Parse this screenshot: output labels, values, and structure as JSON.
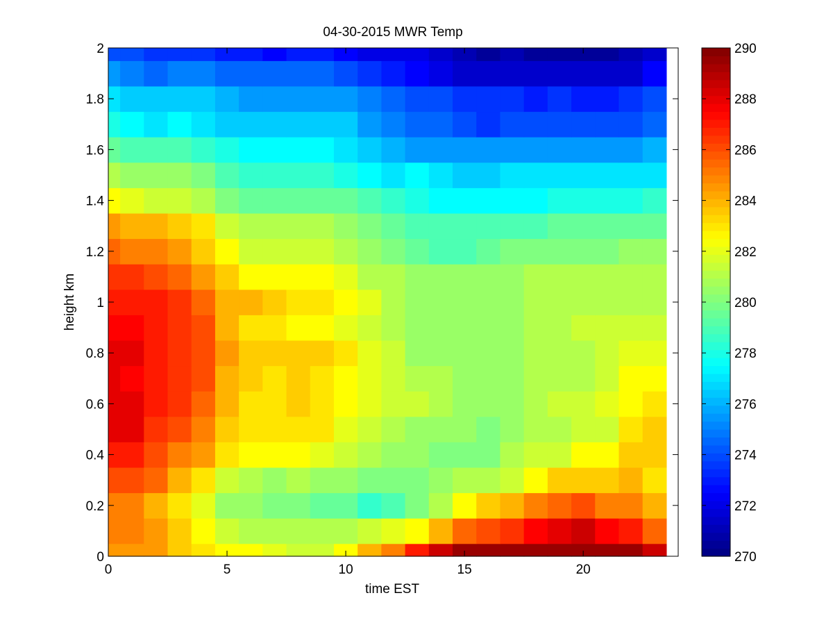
{
  "chart_data": {
    "type": "heatmap",
    "title": "04-30-2015 MWR Temp",
    "xlabel": "time EST",
    "ylabel": "height km",
    "xlim": [
      0,
      24
    ],
    "ylim": [
      0,
      2
    ],
    "x_ticks": [
      0,
      5,
      10,
      15,
      20
    ],
    "y_ticks": [
      0,
      0.2,
      0.4,
      0.6,
      0.8,
      1,
      1.2,
      1.4,
      1.6,
      1.8,
      2
    ],
    "colorbar": {
      "min": 270,
      "max": 290,
      "ticks": [
        270,
        272,
        274,
        276,
        278,
        280,
        282,
        284,
        286,
        288,
        290
      ],
      "colormap": "jet"
    },
    "x": [
      0,
      1,
      2,
      3,
      4,
      5,
      6,
      7,
      8,
      9,
      10,
      11,
      12,
      13,
      14,
      15,
      16,
      17,
      18,
      19,
      20,
      21,
      22,
      23
    ],
    "heights": [
      0.0,
      0.05,
      0.15,
      0.25,
      0.35,
      0.45,
      0.55,
      0.65,
      0.75,
      0.85,
      0.95,
      1.05,
      1.15,
      1.25,
      1.35,
      1.45,
      1.55,
      1.65,
      1.75,
      1.85,
      1.95
    ],
    "values": [
      [
        284.5,
        284.5,
        284.5,
        283.5,
        283.0,
        282.5,
        282.5,
        282.0,
        281.5,
        281.5,
        282.5,
        284.0,
        285.0,
        287.0,
        288.5,
        289.5,
        289.5,
        289.5,
        289.5,
        289.5,
        289.5,
        289.5,
        289.5,
        288.5
      ],
      [
        285.0,
        285.0,
        284.5,
        283.5,
        282.5,
        281.5,
        281.0,
        281.0,
        281.0,
        281.0,
        281.0,
        281.5,
        282.0,
        282.5,
        284.0,
        285.5,
        286.0,
        286.5,
        287.5,
        288.0,
        288.5,
        287.5,
        287.0,
        285.5
      ],
      [
        285.0,
        285.0,
        284.0,
        283.0,
        282.0,
        280.5,
        280.5,
        280.0,
        280.0,
        279.5,
        279.5,
        278.5,
        279.0,
        280.0,
        281.0,
        282.5,
        283.5,
        284.0,
        285.0,
        285.5,
        286.0,
        285.0,
        285.0,
        284.0
      ],
      [
        286.0,
        286.0,
        285.5,
        284.0,
        283.0,
        281.5,
        281.0,
        280.5,
        281.0,
        280.5,
        280.5,
        280.0,
        280.0,
        280.0,
        280.5,
        281.0,
        281.0,
        281.5,
        282.5,
        283.5,
        283.5,
        283.5,
        284.0,
        283.0
      ],
      [
        287.0,
        287.0,
        286.0,
        285.0,
        284.5,
        283.0,
        282.5,
        282.5,
        282.5,
        282.0,
        281.5,
        281.0,
        280.5,
        280.5,
        280.0,
        280.0,
        280.0,
        281.0,
        281.5,
        281.5,
        282.5,
        282.5,
        283.5,
        283.5
      ],
      [
        288.0,
        288.0,
        286.5,
        286.0,
        285.0,
        283.5,
        283.0,
        283.0,
        283.0,
        283.0,
        282.0,
        281.5,
        281.0,
        280.5,
        280.5,
        280.5,
        280.0,
        280.5,
        281.0,
        281.0,
        281.5,
        281.5,
        283.0,
        283.5
      ],
      [
        288.0,
        288.0,
        287.0,
        286.5,
        285.5,
        284.0,
        283.0,
        283.0,
        283.5,
        283.0,
        282.5,
        282.0,
        281.5,
        281.5,
        281.0,
        280.5,
        280.5,
        280.5,
        281.0,
        281.5,
        281.5,
        282.0,
        282.5,
        283.0
      ],
      [
        288.0,
        287.5,
        287.0,
        286.5,
        286.0,
        284.0,
        283.5,
        283.0,
        283.5,
        283.0,
        282.5,
        282.0,
        281.5,
        281.0,
        281.0,
        280.5,
        280.5,
        280.5,
        281.0,
        281.0,
        281.0,
        281.5,
        282.5,
        282.5
      ],
      [
        288.0,
        288.0,
        287.0,
        286.5,
        286.0,
        284.5,
        283.5,
        283.5,
        283.5,
        283.5,
        283.0,
        282.0,
        281.5,
        280.5,
        280.5,
        280.5,
        280.5,
        280.5,
        281.0,
        281.0,
        281.0,
        281.5,
        282.0,
        282.0
      ],
      [
        287.5,
        287.5,
        287.0,
        286.5,
        286.0,
        284.0,
        283.0,
        283.0,
        282.5,
        282.5,
        282.0,
        281.5,
        281.0,
        280.5,
        280.5,
        280.5,
        280.5,
        280.5,
        281.0,
        281.0,
        281.5,
        281.5,
        281.5,
        281.5
      ],
      [
        287.0,
        287.0,
        287.0,
        286.5,
        285.5,
        284.0,
        284.0,
        283.5,
        283.0,
        283.0,
        282.5,
        282.0,
        281.0,
        280.5,
        280.5,
        280.5,
        280.5,
        280.5,
        281.0,
        281.0,
        281.0,
        281.0,
        281.0,
        281.0
      ],
      [
        286.5,
        286.5,
        286.0,
        285.5,
        284.5,
        283.5,
        282.5,
        282.5,
        282.5,
        282.5,
        282.0,
        281.0,
        281.0,
        280.5,
        280.5,
        280.5,
        280.5,
        280.5,
        281.0,
        281.0,
        281.0,
        281.0,
        281.0,
        281.0
      ],
      [
        285.5,
        285.0,
        285.0,
        284.5,
        283.5,
        282.5,
        281.5,
        281.5,
        281.5,
        281.5,
        281.0,
        280.5,
        280.0,
        279.5,
        279.0,
        279.0,
        279.5,
        280.0,
        280.0,
        280.0,
        280.0,
        280.0,
        280.5,
        280.5
      ],
      [
        284.5,
        284.0,
        284.0,
        283.5,
        283.0,
        281.5,
        281.0,
        281.0,
        281.0,
        281.0,
        280.5,
        280.0,
        279.5,
        279.0,
        279.0,
        279.0,
        279.0,
        279.0,
        279.0,
        279.5,
        279.5,
        279.5,
        279.5,
        279.5
      ],
      [
        282.5,
        282.0,
        281.5,
        281.5,
        281.0,
        280.0,
        279.5,
        279.5,
        279.5,
        279.5,
        279.5,
        279.0,
        278.5,
        278.0,
        277.5,
        277.5,
        277.5,
        277.5,
        277.5,
        278.0,
        278.0,
        278.0,
        278.0,
        278.5
      ],
      [
        281.0,
        280.5,
        280.5,
        280.5,
        280.0,
        279.0,
        278.5,
        278.5,
        278.5,
        278.5,
        278.0,
        277.5,
        277.0,
        277.5,
        277.0,
        276.5,
        276.5,
        277.0,
        277.0,
        277.0,
        277.0,
        277.0,
        277.0,
        277.0
      ],
      [
        279.5,
        279.0,
        279.0,
        279.0,
        278.5,
        278.0,
        277.5,
        277.5,
        277.5,
        277.5,
        277.0,
        276.5,
        276.0,
        275.5,
        275.5,
        275.5,
        275.5,
        275.5,
        275.5,
        275.5,
        275.5,
        275.5,
        275.5,
        276.0
      ],
      [
        278.0,
        277.5,
        277.0,
        277.5,
        277.0,
        276.5,
        276.5,
        276.5,
        276.5,
        276.5,
        276.5,
        275.5,
        275.0,
        274.5,
        274.5,
        274.0,
        273.5,
        274.0,
        274.0,
        274.0,
        274.0,
        274.0,
        274.0,
        274.5
      ],
      [
        277.0,
        276.5,
        276.5,
        276.5,
        276.5,
        276.0,
        275.5,
        275.5,
        275.5,
        275.5,
        275.5,
        275.0,
        274.5,
        274.0,
        274.0,
        273.5,
        273.5,
        273.5,
        273.0,
        273.5,
        273.0,
        273.0,
        273.5,
        274.0
      ],
      [
        275.5,
        275.0,
        274.5,
        275.0,
        275.0,
        274.5,
        274.5,
        274.5,
        274.5,
        274.5,
        274.0,
        273.5,
        273.0,
        272.5,
        272.0,
        271.5,
        271.5,
        271.5,
        271.5,
        271.5,
        271.5,
        271.5,
        271.5,
        272.5
      ],
      [
        274.0,
        274.0,
        273.5,
        273.5,
        273.5,
        273.0,
        273.0,
        272.5,
        273.0,
        273.0,
        272.5,
        272.0,
        272.0,
        272.0,
        271.5,
        271.0,
        270.5,
        271.0,
        270.5,
        270.5,
        270.5,
        270.5,
        271.0,
        271.5
      ]
    ]
  }
}
